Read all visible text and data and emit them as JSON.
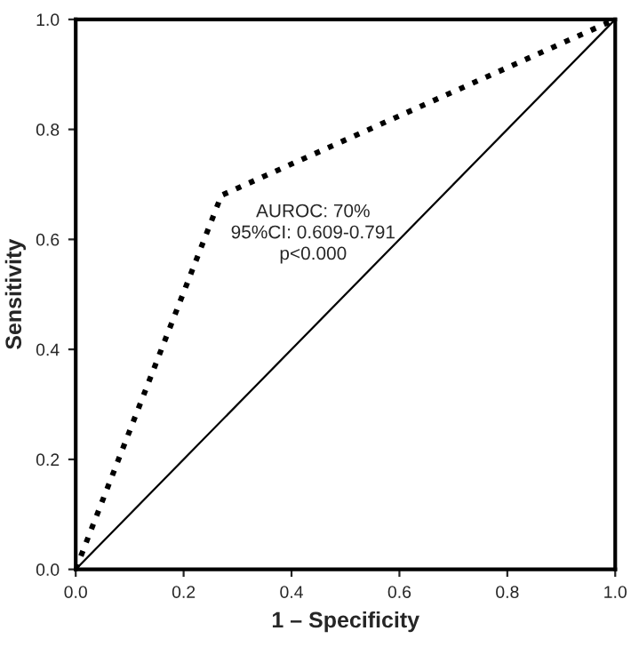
{
  "chart_data": {
    "type": "line",
    "xlabel": "1 – Specificity",
    "ylabel": "Sensitivity",
    "xlim": [
      0,
      1
    ],
    "ylim": [
      0,
      1
    ],
    "xticks": [
      {
        "value": 0,
        "label": "0.0"
      },
      0.2,
      0.4,
      0.6,
      0.8,
      {
        "value": 1,
        "label": "1.0"
      }
    ],
    "yticks": [
      {
        "value": 0,
        "label": "0.0"
      },
      0.2,
      0.4,
      0.6,
      0.8,
      {
        "value": 1,
        "label": "1.0"
      }
    ],
    "grid": false,
    "legend": false,
    "series": [
      {
        "x": [
          0,
          0.27,
          1
        ],
        "values": [
          0,
          0.68,
          1
        ],
        "color": "#000000",
        "line_style": "dotted"
      },
      {
        "x": [
          0,
          1
        ],
        "values": [
          0,
          1
        ],
        "color": "#000000",
        "line_style": "solid"
      }
    ],
    "annotations": [
      "AUROC: 70%\n95%CI: 0.609-0.791\np<0.000"
    ]
  }
}
